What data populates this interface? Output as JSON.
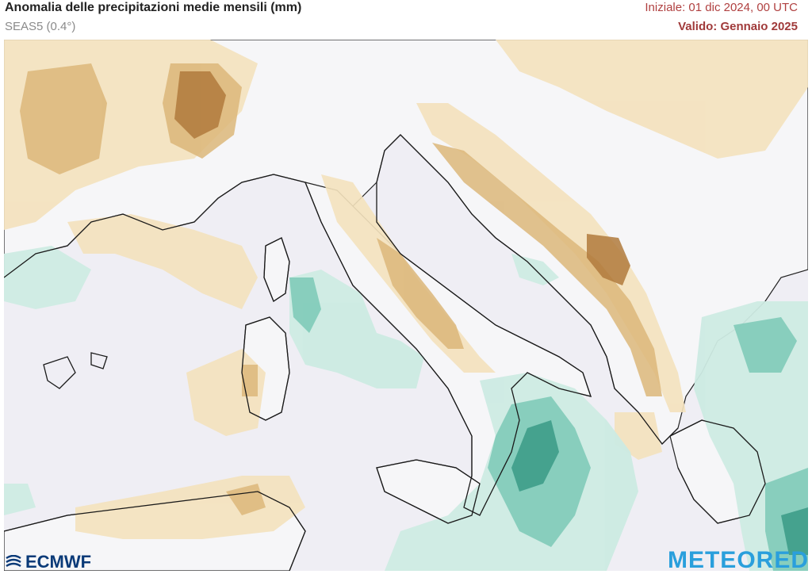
{
  "header": {
    "title": "Anomalia delle precipitazioni medie mensili (mm)",
    "model": "SEAS5 (0.4°)",
    "init": "Iniziale: 01 dic 2024, 00 UTC",
    "valid": "Valido: Gennaio 2025"
  },
  "colors": {
    "sea": "#efeef4",
    "land": "#f6f6f8",
    "dry_light": "#f4e2bd",
    "dry_mid": "#dcb77a",
    "dry_strong": "#b07a3c",
    "wet_light": "#cdebe3",
    "wet_mid": "#7fcbb8",
    "wet_strong": "#3a9a86"
  },
  "logos": {
    "left": "ECMWF",
    "right": "METEORED"
  }
}
